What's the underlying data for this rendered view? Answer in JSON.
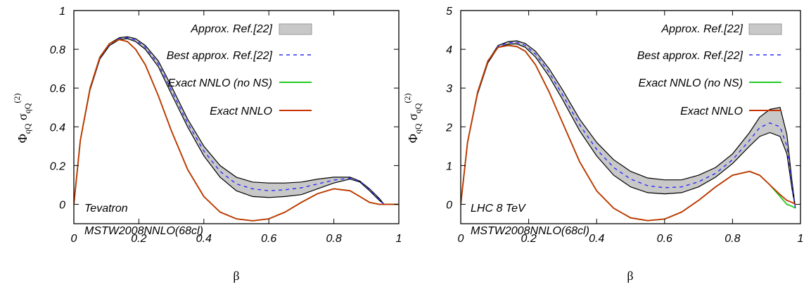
{
  "colors": {
    "band_fill": "#c8c8c8",
    "band_edge": "#000000",
    "best": "#2b2bff",
    "exact_no_ns": "#22cc22",
    "exact": "#c83200"
  },
  "chart_data": [
    {
      "type": "line",
      "xlabel": "β",
      "ylabel": {
        "main": "Φ",
        "sub1": "qQ",
        "mid": " σ",
        "sub2": "qQ",
        "sup": "(2)"
      },
      "xlim": [
        0,
        1
      ],
      "ylim": [
        -0.1,
        1.0
      ],
      "xticks": [
        "0",
        "0.2",
        "0.4",
        "0.6",
        "0.8",
        "1"
      ],
      "xtick_values": [
        0,
        0.2,
        0.4,
        0.6,
        0.8,
        1
      ],
      "yticks": [
        "0",
        "0.2",
        "0.4",
        "0.6",
        "0.8",
        "1"
      ],
      "ytick_values": [
        0,
        0.2,
        0.4,
        0.6,
        0.8,
        1
      ],
      "grid": false,
      "legend_position": "top-right",
      "annotations": [
        "Tevatron",
        "MSTW2008NNLO(68cl)"
      ],
      "x": [
        0,
        0.02,
        0.05,
        0.08,
        0.11,
        0.14,
        0.165,
        0.19,
        0.22,
        0.26,
        0.3,
        0.35,
        0.4,
        0.45,
        0.5,
        0.55,
        0.6,
        0.65,
        0.7,
        0.75,
        0.8,
        0.85,
        0.88,
        0.91,
        0.94,
        0.955,
        0.96,
        1.0
      ],
      "band": {
        "name": "Approx. Ref.[22]",
        "upper": [
          0,
          0.33,
          0.6,
          0.76,
          0.83,
          0.86,
          0.865,
          0.855,
          0.82,
          0.74,
          0.61,
          0.44,
          0.3,
          0.2,
          0.14,
          0.115,
          0.11,
          0.11,
          0.115,
          0.13,
          0.14,
          0.14,
          0.12,
          0.08,
          0.03,
          0.0,
          0.0,
          0.0
        ],
        "lower": [
          0,
          0.33,
          0.59,
          0.75,
          0.82,
          0.85,
          0.855,
          0.84,
          0.8,
          0.71,
          0.57,
          0.4,
          0.25,
          0.14,
          0.07,
          0.04,
          0.035,
          0.04,
          0.05,
          0.08,
          0.11,
          0.13,
          0.115,
          0.07,
          0.02,
          0.0,
          0.0,
          0.0
        ]
      },
      "series": [
        {
          "name": "Best approx. Ref.[22]",
          "style": "dashed",
          "color_key": "best",
          "y": [
            0,
            0.33,
            0.595,
            0.755,
            0.825,
            0.855,
            0.86,
            0.848,
            0.81,
            0.725,
            0.59,
            0.42,
            0.275,
            0.17,
            0.105,
            0.08,
            0.07,
            0.075,
            0.085,
            0.105,
            0.125,
            0.135,
            0.118,
            0.075,
            0.025,
            0.0,
            0.0,
            0.0
          ]
        },
        {
          "name": "Exact NNLO (no NS)",
          "style": "solid",
          "color_key": "exact_no_ns",
          "y": [
            0,
            0.33,
            0.6,
            0.76,
            0.83,
            0.85,
            0.84,
            0.8,
            0.72,
            0.56,
            0.38,
            0.18,
            0.04,
            -0.04,
            -0.075,
            -0.085,
            -0.075,
            -0.04,
            0.01,
            0.055,
            0.08,
            0.07,
            0.04,
            0.01,
            0.0,
            0.0,
            0.0,
            0.0
          ]
        },
        {
          "name": "Exact NNLO",
          "style": "solid",
          "color_key": "exact",
          "y": [
            0,
            0.33,
            0.6,
            0.76,
            0.83,
            0.85,
            0.84,
            0.8,
            0.72,
            0.56,
            0.38,
            0.18,
            0.04,
            -0.04,
            -0.075,
            -0.085,
            -0.075,
            -0.04,
            0.01,
            0.055,
            0.08,
            0.07,
            0.04,
            0.01,
            0.0,
            0.0,
            0.0,
            0.0
          ]
        }
      ]
    },
    {
      "type": "line",
      "xlabel": "β",
      "ylabel": {
        "main": "Φ",
        "sub1": "qQ",
        "mid": " σ",
        "sub2": "qQ",
        "sup": "(2)"
      },
      "xlim": [
        0,
        1
      ],
      "ylim": [
        -0.5,
        5.0
      ],
      "xticks": [
        "0",
        "0.2",
        "0.4",
        "0.6",
        "0.8",
        "1"
      ],
      "xtick_values": [
        0,
        0.2,
        0.4,
        0.6,
        0.8,
        1
      ],
      "yticks": [
        "0",
        "1",
        "2",
        "3",
        "4",
        "5"
      ],
      "ytick_values": [
        0,
        1,
        2,
        3,
        4,
        5
      ],
      "grid": false,
      "legend_position": "top-right",
      "annotations": [
        "LHC 8 TeV",
        "MSTW2008NNLO(68cl)"
      ],
      "x": [
        0,
        0.02,
        0.05,
        0.08,
        0.11,
        0.14,
        0.165,
        0.19,
        0.22,
        0.26,
        0.3,
        0.35,
        0.4,
        0.45,
        0.5,
        0.55,
        0.6,
        0.65,
        0.7,
        0.75,
        0.8,
        0.85,
        0.88,
        0.91,
        0.94,
        0.96,
        0.975,
        0.985
      ],
      "band": {
        "name": "Approx. Ref.[22]",
        "upper": [
          0,
          1.6,
          2.9,
          3.7,
          4.1,
          4.2,
          4.22,
          4.15,
          3.95,
          3.5,
          2.95,
          2.2,
          1.6,
          1.15,
          0.85,
          0.68,
          0.63,
          0.63,
          0.75,
          0.95,
          1.3,
          1.85,
          2.25,
          2.45,
          2.5,
          1.8,
          0.6,
          -0.1
        ],
        "lower": [
          0,
          1.6,
          2.85,
          3.65,
          4.05,
          4.13,
          4.14,
          4.05,
          3.8,
          3.3,
          2.7,
          1.9,
          1.25,
          0.75,
          0.45,
          0.3,
          0.27,
          0.3,
          0.45,
          0.7,
          1.05,
          1.5,
          1.75,
          1.85,
          1.75,
          1.3,
          0.4,
          -0.1
        ]
      },
      "series": [
        {
          "name": "Best approx. Ref.[22]",
          "style": "dashed",
          "color_key": "best",
          "y": [
            0,
            1.6,
            2.88,
            3.68,
            4.08,
            4.17,
            4.18,
            4.1,
            3.88,
            3.4,
            2.82,
            2.05,
            1.42,
            0.95,
            0.65,
            0.48,
            0.43,
            0.45,
            0.58,
            0.8,
            1.15,
            1.65,
            1.98,
            2.1,
            2.0,
            1.5,
            0.5,
            -0.1
          ]
        },
        {
          "name": "Exact NNLO (no NS)",
          "style": "solid",
          "color_key": "exact_no_ns",
          "y": [
            0,
            1.6,
            2.9,
            3.7,
            4.05,
            4.1,
            4.07,
            3.95,
            3.6,
            2.9,
            2.1,
            1.1,
            0.35,
            -0.1,
            -0.35,
            -0.42,
            -0.38,
            -0.2,
            0.1,
            0.45,
            0.75,
            0.85,
            0.75,
            0.5,
            0.2,
            0.0,
            -0.05,
            -0.1
          ]
        },
        {
          "name": "Exact NNLO",
          "style": "solid",
          "color_key": "exact",
          "y": [
            0,
            1.6,
            2.9,
            3.7,
            4.05,
            4.1,
            4.07,
            3.95,
            3.6,
            2.9,
            2.1,
            1.1,
            0.35,
            -0.1,
            -0.35,
            -0.42,
            -0.38,
            -0.2,
            0.1,
            0.45,
            0.75,
            0.85,
            0.75,
            0.5,
            0.25,
            0.1,
            0.05,
            0.0
          ]
        }
      ]
    }
  ]
}
